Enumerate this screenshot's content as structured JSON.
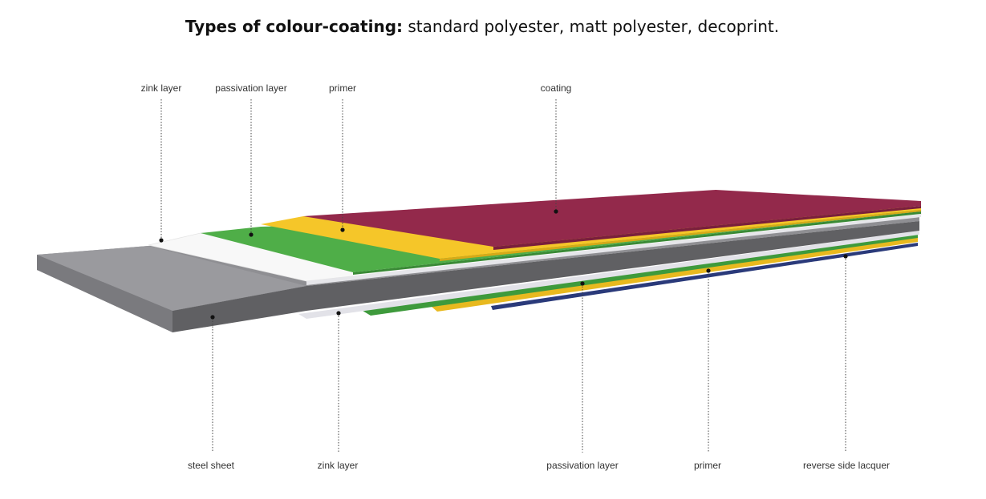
{
  "header": {
    "title_bold": "Types of colour-coating:",
    "title_rest": " standard polyester, matt polyester, decoprint."
  },
  "labels": {
    "top": {
      "zink_layer": "zink layer",
      "passivation_layer": "passivation layer",
      "primer": "primer",
      "coating": "coating"
    },
    "bottom": {
      "steel_sheet": "steel sheet",
      "zink_layer": "zink layer",
      "passivation_layer": "passivation layer",
      "primer": "primer",
      "reverse_side_lacquer": "reverse side lacquer"
    }
  },
  "colors": {
    "coating": "#93294b",
    "primer": "#f5c629",
    "passivation": "#4fae48",
    "zink": "#f7f7f7",
    "steel_top": "#8f8f93",
    "steel_side": "#606063",
    "lacquer": "#2a3a7a",
    "leader": "#444444"
  }
}
